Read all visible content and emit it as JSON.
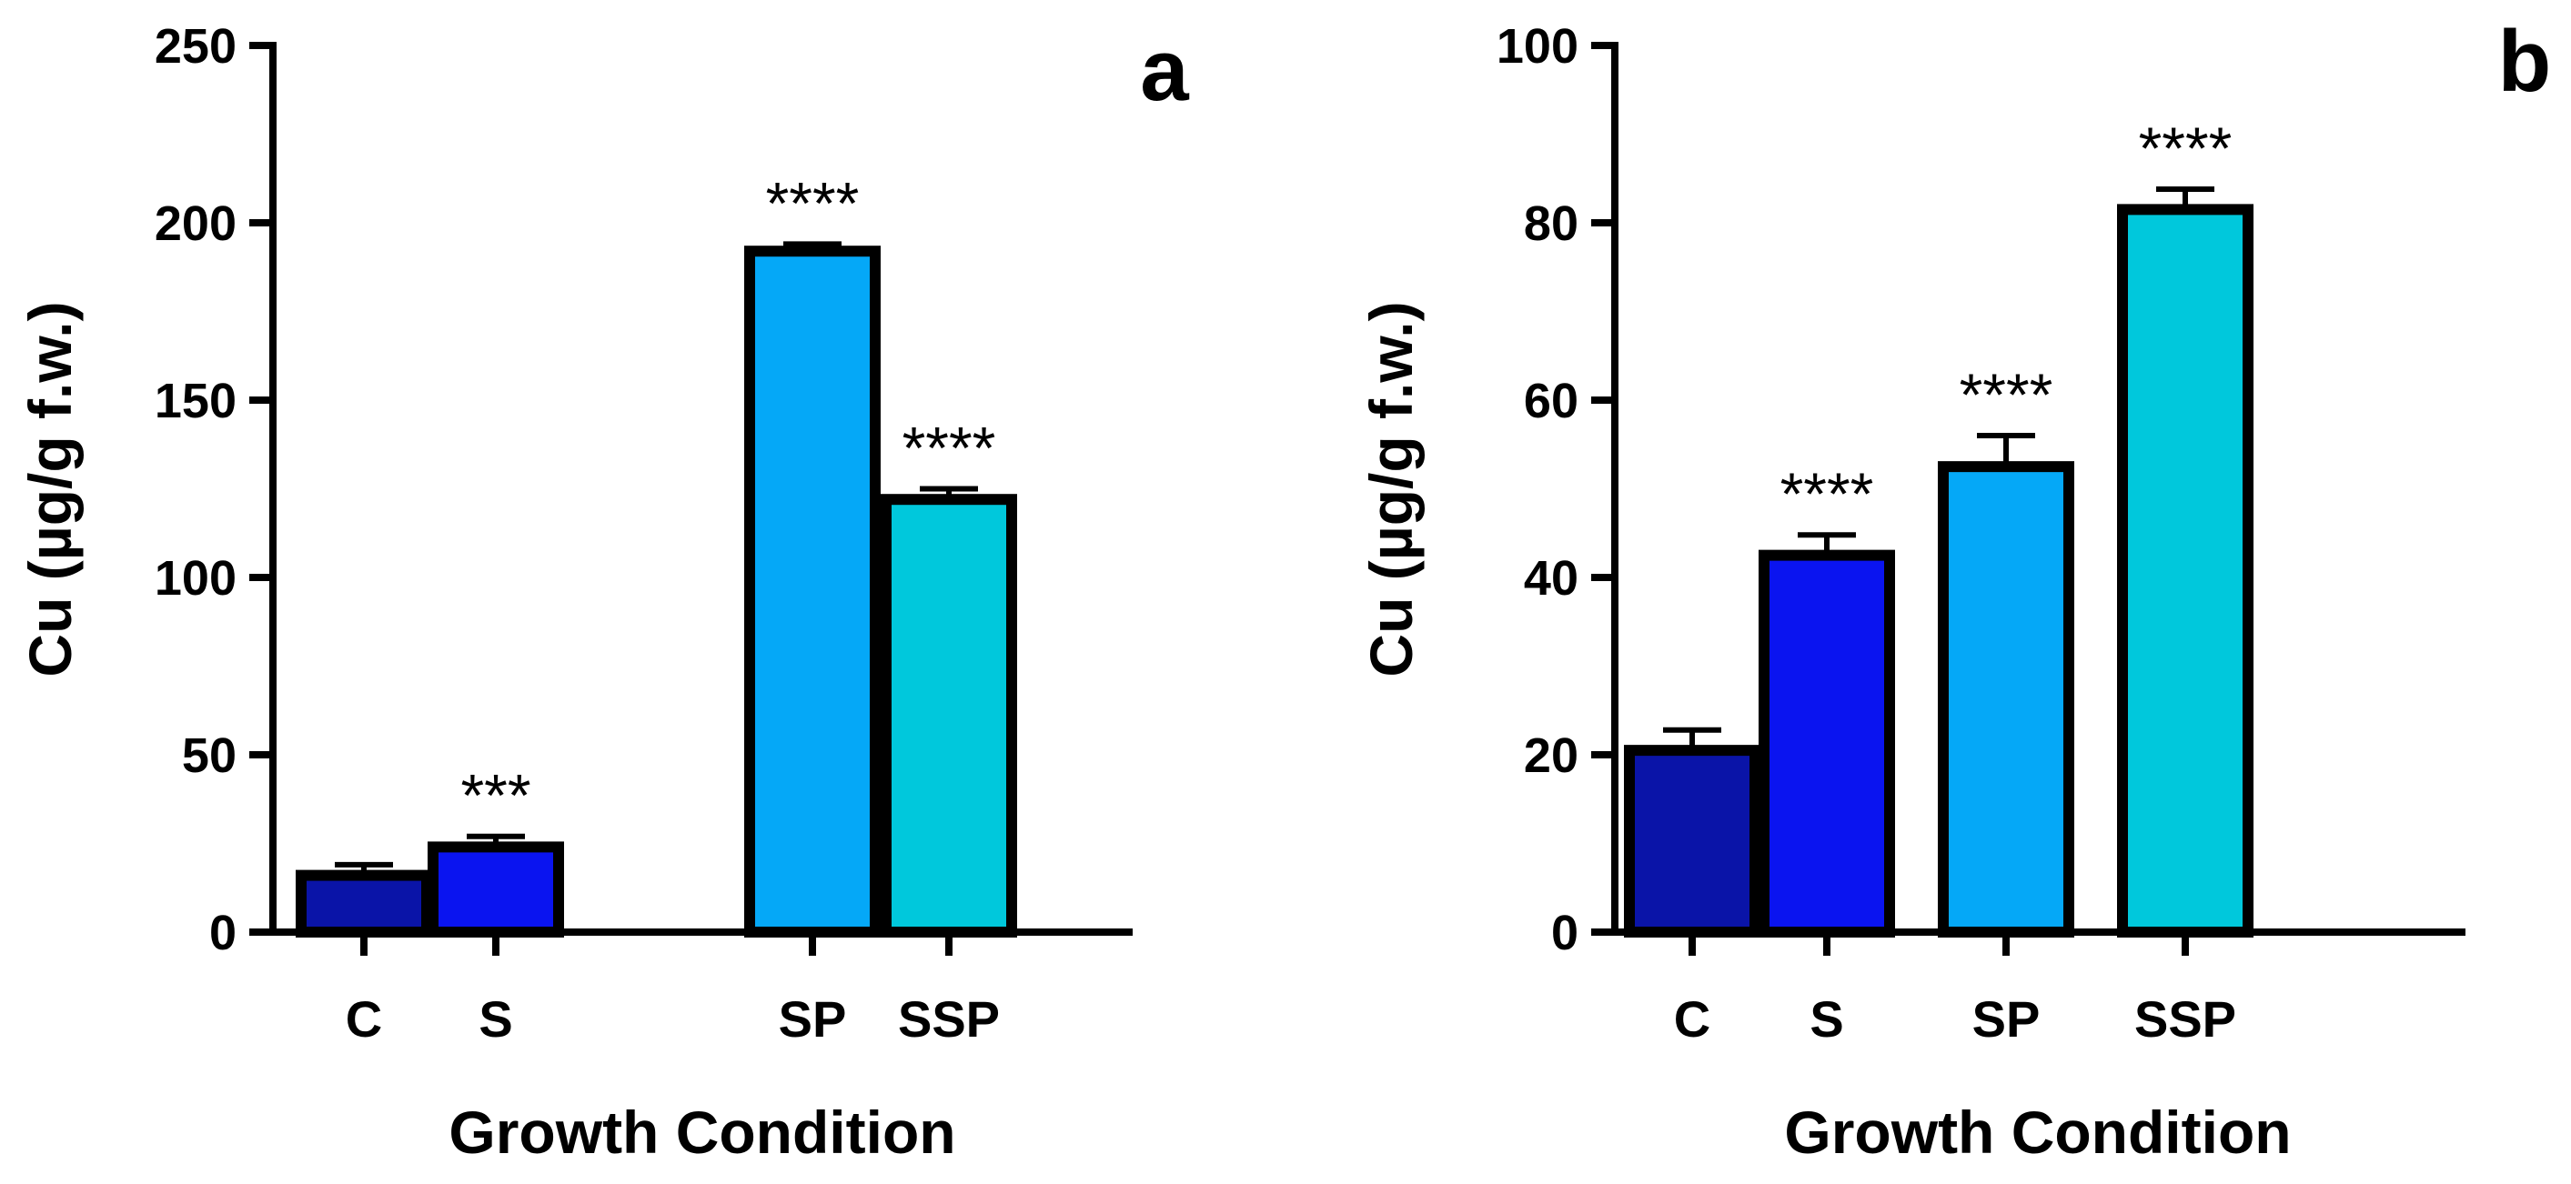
{
  "chart_data": [
    {
      "type": "bar",
      "panel_label": "a",
      "categories": [
        "C",
        "S",
        "SP",
        "SSP"
      ],
      "values": [
        16,
        24,
        192,
        122
      ],
      "errors": [
        3,
        3,
        2,
        3
      ],
      "significance": [
        "",
        "***",
        "****",
        "****"
      ],
      "colors": [
        "#0a14a8",
        "#0a14f0",
        "#05a8f7",
        "#00c8dc"
      ],
      "xlabel": "Growth Condition",
      "ylabel": "Cu (µg/g f.w.)",
      "ylim": [
        0,
        250
      ],
      "yticks": [
        0,
        50,
        100,
        150,
        200,
        250
      ],
      "grid": false
    },
    {
      "type": "bar",
      "panel_label": "b",
      "categories": [
        "C",
        "S",
        "SP",
        "SSP"
      ],
      "values": [
        20.5,
        42.5,
        52.5,
        81.5
      ],
      "errors": [
        2.3,
        2.3,
        3.5,
        2.3
      ],
      "significance": [
        "",
        "****",
        "****",
        "****"
      ],
      "colors": [
        "#0a14a8",
        "#0a14f0",
        "#05a8f7",
        "#00c8dc"
      ],
      "xlabel": "Growth Condition",
      "ylabel": "Cu (µg/g f.w.)",
      "ylim": [
        0,
        100
      ],
      "yticks": [
        0,
        20,
        40,
        60,
        80,
        100
      ],
      "grid": false
    }
  ]
}
